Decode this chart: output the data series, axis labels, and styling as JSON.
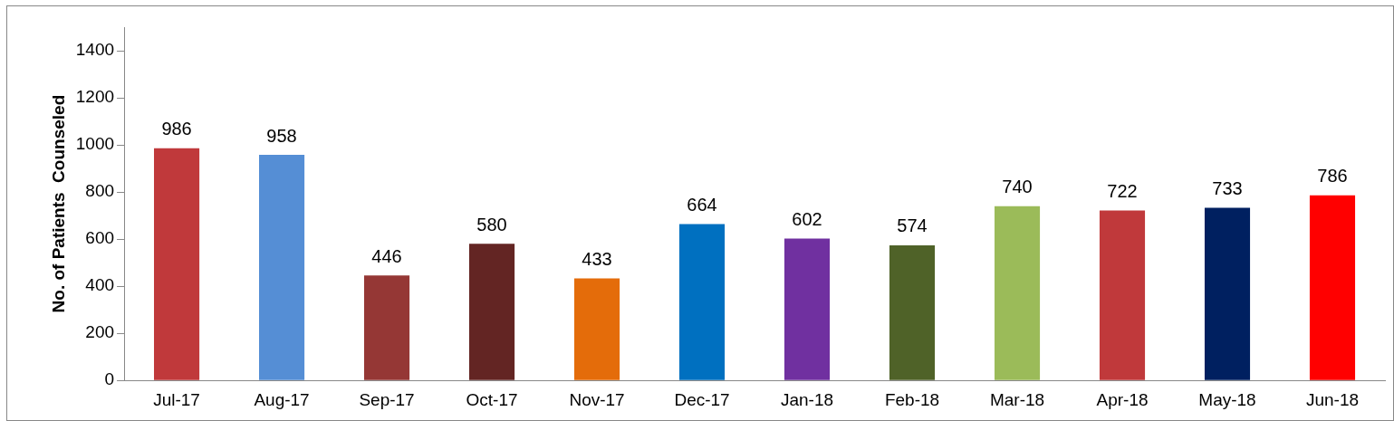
{
  "chart_data": {
    "type": "bar",
    "ylabel": "No. of Patients  Counseled",
    "categories": [
      "Jul-17",
      "Aug-17",
      "Sep-17",
      "Oct-17",
      "Nov-17",
      "Dec-17",
      "Jan-18",
      "Feb-18",
      "Mar-18",
      "Apr-18",
      "May-18",
      "Jun-18"
    ],
    "values": [
      986,
      958,
      446,
      580,
      433,
      664,
      602,
      574,
      740,
      722,
      733,
      786
    ],
    "colors": [
      "#c0393b",
      "#558ed5",
      "#953735",
      "#632523",
      "#e46c0a",
      "#0070c0",
      "#7030a0",
      "#4f6228",
      "#9bbb59",
      "#c0393b",
      "#002060",
      "#ff0000"
    ],
    "ylim": [
      0,
      1500
    ],
    "yticks": [
      0,
      200,
      400,
      600,
      800,
      1000,
      1200,
      1400
    ],
    "grid": false,
    "legend": false,
    "data_labels": true
  }
}
